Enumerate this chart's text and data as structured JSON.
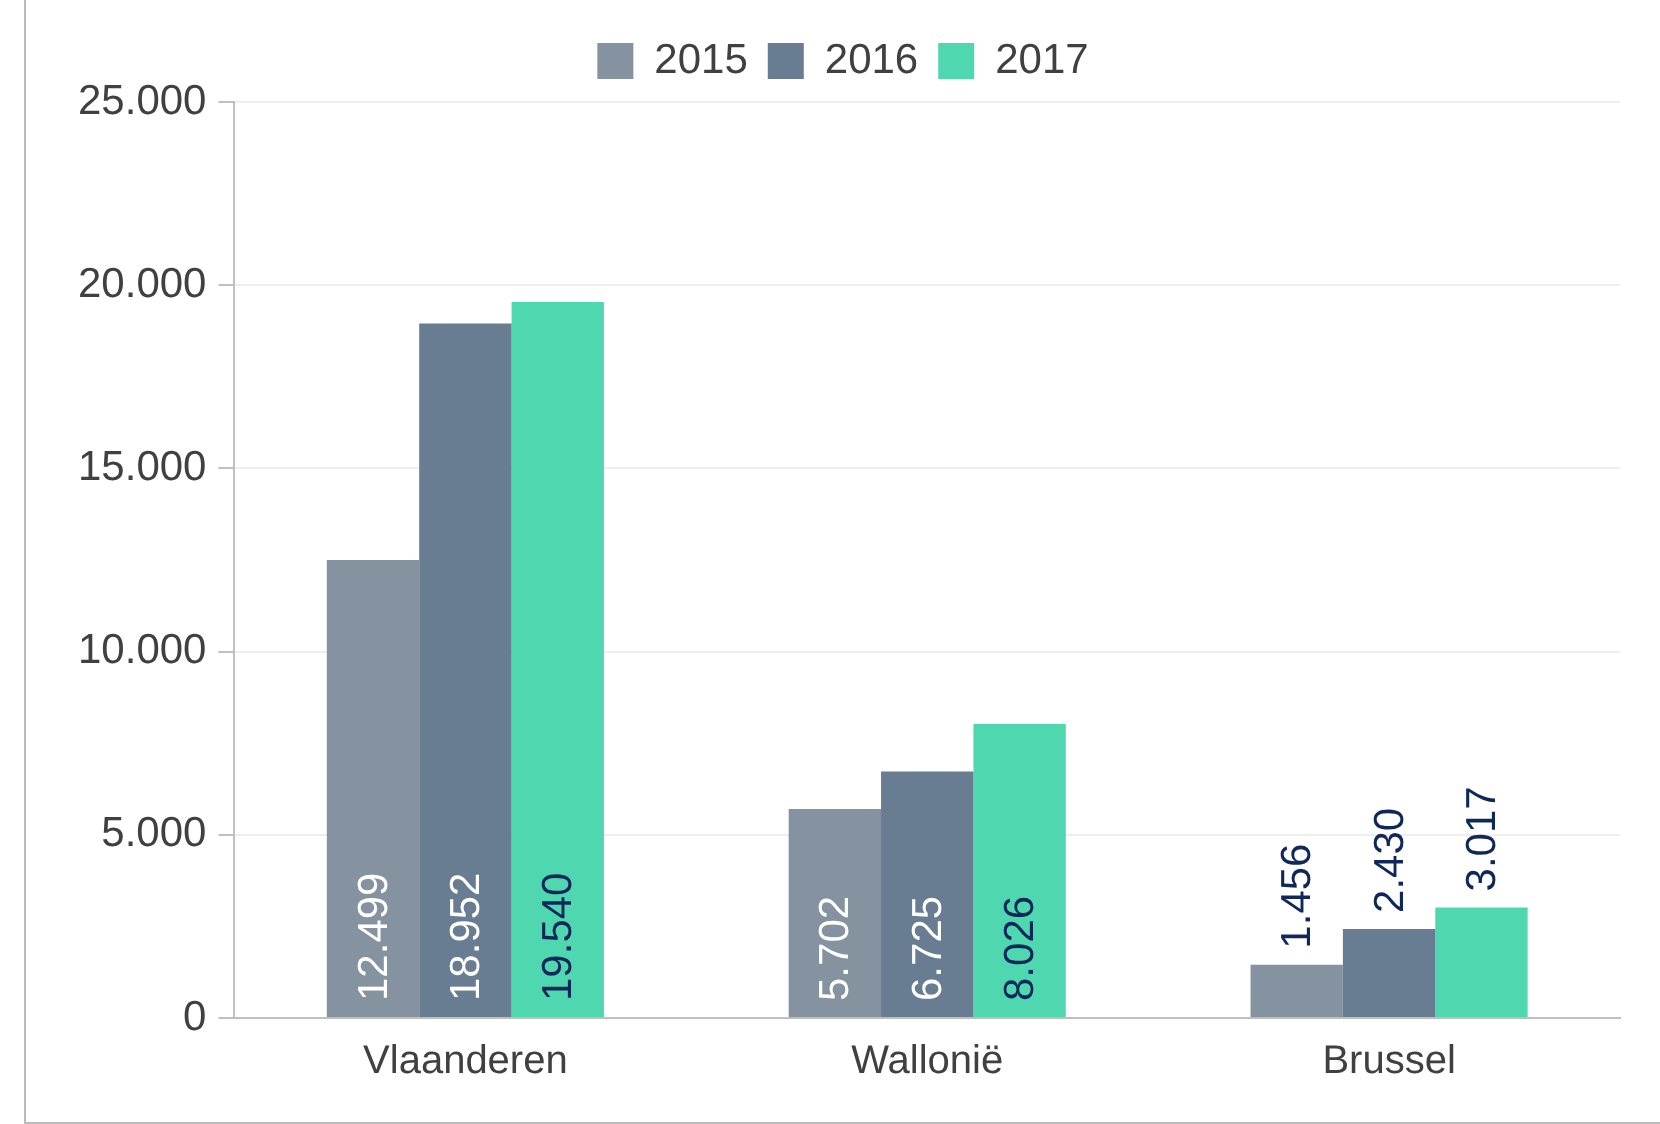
{
  "chart_data": {
    "type": "bar",
    "categories": [
      "Vlaanderen",
      "Wallonië",
      "Brussel"
    ],
    "series": [
      {
        "name": "2015",
        "color": "#8593a1",
        "values": [
          12499,
          5702,
          1456
        ],
        "value_labels": [
          "12.499",
          "5.702",
          "1.456"
        ]
      },
      {
        "name": "2016",
        "color": "#687d91",
        "values": [
          18952,
          6725,
          2430
        ],
        "value_labels": [
          "18.952",
          "6.725",
          "2.430"
        ]
      },
      {
        "name": "2017",
        "color": "#4fd8b0",
        "values": [
          19540,
          8026,
          3017
        ],
        "value_labels": [
          "19.540",
          "8.026",
          "3.017"
        ]
      }
    ],
    "ylim": [
      0,
      25000
    ],
    "yticks": [
      {
        "value": 0,
        "label": "0"
      },
      {
        "value": 5000,
        "label": "5.000"
      },
      {
        "value": 10000,
        "label": "10.000"
      },
      {
        "value": 15000,
        "label": "15.000"
      },
      {
        "value": 20000,
        "label": "20.000"
      },
      {
        "value": 25000,
        "label": "25.000"
      }
    ],
    "grid": "y",
    "legend": "top"
  }
}
